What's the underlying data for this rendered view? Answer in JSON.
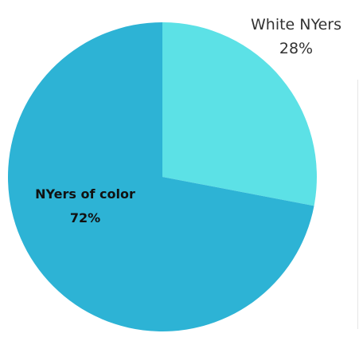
{
  "chart_data": {
    "type": "pie",
    "title": "",
    "start_angle_deg": 0,
    "direction": "clockwise",
    "slices": [
      {
        "label": "White NYers",
        "value": 28,
        "value_label": "28%",
        "color": "#5CE1E6",
        "label_position": "outside"
      },
      {
        "label": "NYers of color",
        "value": 72,
        "value_label": "72%",
        "color": "#2DB3D5",
        "label_position": "inside"
      }
    ]
  }
}
